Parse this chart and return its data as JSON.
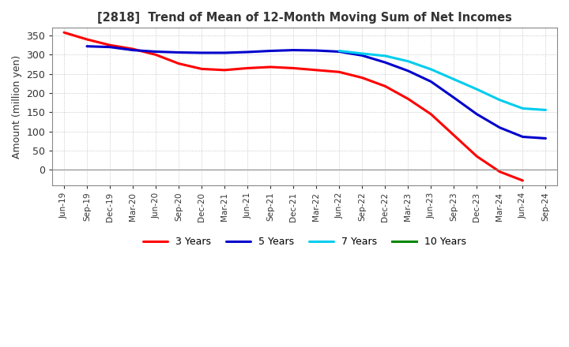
{
  "title": "[2818]  Trend of Mean of 12-Month Moving Sum of Net Incomes",
  "ylabel": "Amount (million yen)",
  "ylim": [
    -40,
    370
  ],
  "yticks": [
    0,
    50,
    100,
    150,
    200,
    250,
    300,
    350
  ],
  "background_color": "#ffffff",
  "plot_background_color": "#ffffff",
  "grid_color": "#aaaaaa",
  "legend_labels": [
    "3 Years",
    "5 Years",
    "7 Years",
    "10 Years"
  ],
  "legend_colors": [
    "#ff0000",
    "#0000cc",
    "#00ccee",
    "#008800"
  ],
  "x_labels": [
    "Jun-19",
    "Sep-19",
    "Dec-19",
    "Mar-20",
    "Jun-20",
    "Sep-20",
    "Dec-20",
    "Mar-21",
    "Jun-21",
    "Sep-21",
    "Dec-21",
    "Mar-22",
    "Jun-22",
    "Sep-22",
    "Dec-22",
    "Mar-23",
    "Jun-23",
    "Sep-23",
    "Dec-23",
    "Mar-24",
    "Jun-24",
    "Sep-24"
  ],
  "series_3y": [
    358,
    340,
    325,
    315,
    300,
    277,
    263,
    260,
    265,
    268,
    265,
    260,
    255,
    240,
    218,
    185,
    145,
    90,
    35,
    -5,
    -28,
    null
  ],
  "series_5y": [
    null,
    322,
    320,
    312,
    308,
    306,
    305,
    305,
    307,
    310,
    312,
    311,
    308,
    298,
    280,
    258,
    230,
    188,
    145,
    110,
    86,
    82
  ],
  "series_7y": [
    null,
    null,
    null,
    null,
    null,
    null,
    null,
    null,
    null,
    null,
    null,
    null,
    310,
    303,
    297,
    283,
    262,
    236,
    210,
    182,
    160,
    156
  ],
  "series_10y": [
    null,
    null,
    null,
    null,
    null,
    null,
    null,
    null,
    null,
    null,
    null,
    null,
    null,
    null,
    null,
    null,
    null,
    null,
    null,
    null,
    null,
    null
  ]
}
